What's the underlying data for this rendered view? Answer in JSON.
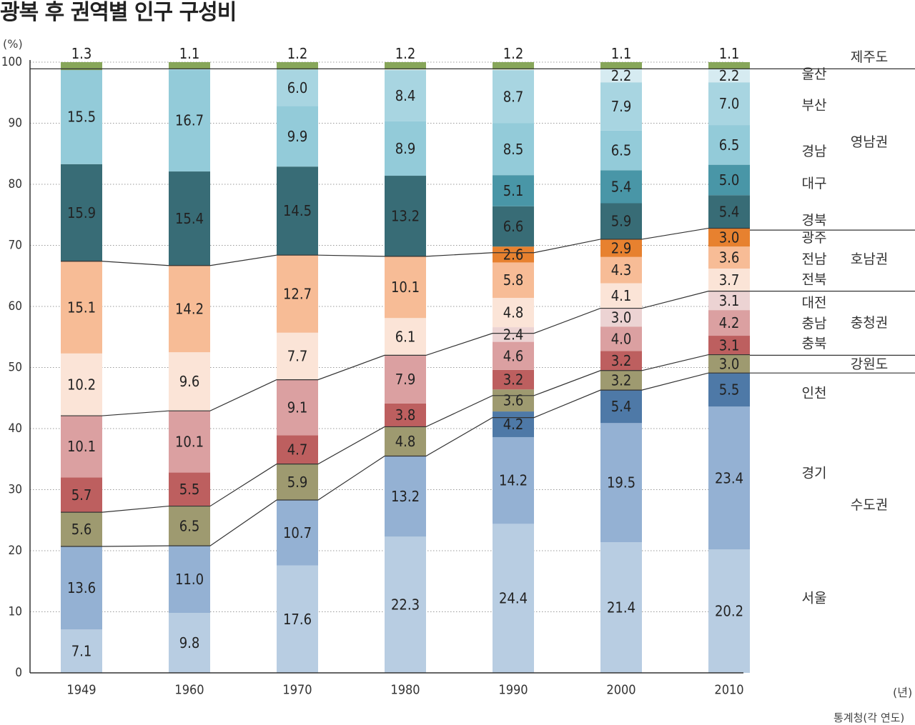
{
  "title": "광복 후 권역별 인구 구성비",
  "y_unit": "(%)",
  "x_unit": "(년)",
  "source": "통계청(각 연도)",
  "chart_data": {
    "type": "bar",
    "stacked": true,
    "title": "광복 후 권역별 인구 구성비",
    "xlabel": "",
    "ylabel": "(%)",
    "ylim": [
      0,
      100
    ],
    "yticks": [
      0,
      10,
      20,
      30,
      40,
      50,
      60,
      70,
      80,
      90,
      100
    ],
    "categories": [
      "1949",
      "1960",
      "1970",
      "1980",
      "1990",
      "2000",
      "2010"
    ],
    "colors": {
      "seoul": "#b8cde2",
      "gyeonggi": "#94b1d3",
      "incheon": "#4e79a7",
      "gangwon": "#9e9a70",
      "chungbuk": "#bd5f5f",
      "chungnam": "#dba0a1",
      "daejeon": "#ecd3d3",
      "jeonbuk": "#fbe4d7",
      "jeonnam": "#f7bc96",
      "gwangju": "#e7812f",
      "gyeongbuk": "#386c76",
      "daegu": "#4996a7",
      "gyeongnam": "#93cbd9",
      "busan": "#a8d5e1",
      "ulsan": "#d6ebf1",
      "jeju": "#87a659",
      "region_line": "#333333",
      "grid": "#9a9a9a",
      "label_text": "#222222"
    },
    "series": [
      {
        "key": "seoul",
        "name": "서울",
        "values": [
          7.1,
          9.8,
          17.6,
          22.3,
          24.4,
          21.4,
          20.2
        ]
      },
      {
        "key": "gyeonggi",
        "name": "경기",
        "values": [
          13.6,
          11.0,
          10.7,
          13.2,
          14.2,
          19.5,
          23.4
        ]
      },
      {
        "key": "incheon",
        "name": "인천",
        "values": [
          null,
          null,
          null,
          null,
          4.2,
          5.4,
          5.5
        ]
      },
      {
        "key": "gangwon",
        "name": "강원도",
        "values": [
          5.6,
          6.5,
          5.9,
          4.8,
          3.6,
          3.2,
          3.0
        ]
      },
      {
        "key": "chungbuk",
        "name": "충북",
        "values": [
          5.7,
          5.5,
          4.7,
          3.8,
          3.2,
          3.2,
          3.1
        ]
      },
      {
        "key": "chungnam",
        "name": "충남",
        "values": [
          10.1,
          10.1,
          9.1,
          7.9,
          4.6,
          4.0,
          4.2
        ]
      },
      {
        "key": "daejeon",
        "name": "대전",
        "values": [
          null,
          null,
          null,
          null,
          2.4,
          3.0,
          3.1
        ]
      },
      {
        "key": "jeonbuk",
        "name": "전북",
        "values": [
          10.2,
          9.6,
          7.7,
          6.1,
          4.8,
          4.1,
          3.7
        ]
      },
      {
        "key": "jeonnam",
        "name": "전남",
        "values": [
          15.1,
          14.2,
          12.7,
          10.1,
          5.8,
          4.3,
          3.6
        ]
      },
      {
        "key": "gwangju",
        "name": "광주",
        "values": [
          null,
          null,
          null,
          null,
          2.6,
          2.9,
          3.0
        ]
      },
      {
        "key": "gyeongbuk",
        "name": "경북",
        "values": [
          15.9,
          15.4,
          14.5,
          13.2,
          6.6,
          5.9,
          5.4
        ]
      },
      {
        "key": "daegu",
        "name": "대구",
        "values": [
          null,
          null,
          null,
          null,
          5.1,
          5.4,
          5.0
        ]
      },
      {
        "key": "gyeongnam",
        "name": "경남",
        "values": [
          15.5,
          16.7,
          9.9,
          8.9,
          8.5,
          6.5,
          6.5
        ]
      },
      {
        "key": "busan",
        "name": "부산",
        "values": [
          null,
          null,
          6.0,
          8.4,
          8.7,
          7.9,
          7.0
        ]
      },
      {
        "key": "ulsan",
        "name": "울산",
        "values": [
          null,
          null,
          null,
          null,
          null,
          2.2,
          2.2
        ]
      },
      {
        "key": "jeju",
        "name": "제주도",
        "values": [
          1.3,
          1.1,
          1.2,
          1.2,
          1.2,
          1.1,
          1.1
        ]
      }
    ],
    "region_boundaries": [
      {
        "name": "수도권/강원 경계",
        "values": [
          20.7,
          20.8,
          28.3,
          35.5,
          41.8,
          46.3,
          49.1
        ]
      },
      {
        "name": "강원/충청 경계",
        "values": [
          26.3,
          27.3,
          34.2,
          40.3,
          45.4,
          49.5,
          52.1
        ]
      },
      {
        "name": "충청/호남 경계",
        "values": [
          42.1,
          42.9,
          48.0,
          52.0,
          55.6,
          59.7,
          62.5
        ]
      },
      {
        "name": "호남/영남 경계",
        "values": [
          67.4,
          66.7,
          68.4,
          68.2,
          68.8,
          71.0,
          72.8
        ]
      }
    ],
    "right_labels": {
      "provinces": [
        {
          "text": "울산",
          "at": 98
        },
        {
          "text": "부산",
          "at": 92.9
        },
        {
          "text": "경남",
          "at": 85.4
        },
        {
          "text": "대구",
          "at": 80.1
        },
        {
          "text": "경북",
          "at": 74.1
        },
        {
          "text": "광주",
          "at": 71.2
        },
        {
          "text": "전남",
          "at": 67.7
        },
        {
          "text": "전북",
          "at": 64.4
        },
        {
          "text": "대전",
          "at": 60.6
        },
        {
          "text": "충남",
          "at": 57.2
        },
        {
          "text": "충북",
          "at": 53.9
        },
        {
          "text": "인천",
          "at": 45.8
        },
        {
          "text": "경기",
          "at": 32.7
        },
        {
          "text": "서울",
          "at": 12.2
        }
      ],
      "regions": [
        {
          "text": "제주도",
          "at": 100.8
        },
        {
          "text": "영남권",
          "at": 86.9
        },
        {
          "text": "호남권",
          "at": 67.7
        },
        {
          "text": "충청권",
          "at": 57.3
        },
        {
          "text": "강원도",
          "at": 50.5
        },
        {
          "text": "수도권",
          "at": 27.5
        }
      ],
      "dividers": [
        98.9,
        72.5,
        62.5,
        52.0,
        49.1
      ]
    }
  }
}
